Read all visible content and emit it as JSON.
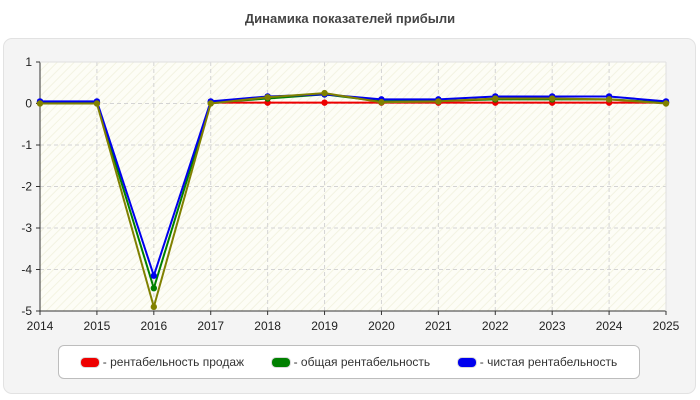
{
  "chart_data": {
    "type": "line",
    "title": "Динамика показателей прибыли",
    "xlabel": "",
    "ylabel": "",
    "x": [
      "2014",
      "2015",
      "2016",
      "2017",
      "2018",
      "2019",
      "2020",
      "2021",
      "2022",
      "2023",
      "2024",
      "2025"
    ],
    "ylim": [
      -5,
      1
    ],
    "yticks": [
      "1",
      "0",
      "-1",
      "-2",
      "-3",
      "-4",
      "-5"
    ],
    "grid": true,
    "legend_position": "bottom",
    "series": [
      {
        "name": "- рентабельность продаж",
        "color": "#ee0000",
        "values": [
          0.02,
          0.02,
          null,
          0.02,
          0.02,
          0.02,
          0.02,
          0.02,
          0.02,
          0.02,
          0.02,
          0.02
        ]
      },
      {
        "name": "- общая рентабельность",
        "color": "#008000",
        "values": [
          0.02,
          0.02,
          -4.45,
          0.02,
          0.12,
          0.22,
          0.05,
          0.06,
          0.1,
          0.1,
          0.1,
          0.02
        ]
      },
      {
        "name": "- чистая рентабельность",
        "color": "#0000ee",
        "values": [
          0.05,
          0.05,
          -4.15,
          0.05,
          0.17,
          0.22,
          0.1,
          0.1,
          0.17,
          0.17,
          0.17,
          0.05
        ]
      },
      {
        "name": "",
        "color": "#808000",
        "values": [
          0.0,
          0.0,
          -4.9,
          0.0,
          0.15,
          0.25,
          0.03,
          0.05,
          0.12,
          0.12,
          0.1,
          0.0
        ]
      }
    ]
  }
}
